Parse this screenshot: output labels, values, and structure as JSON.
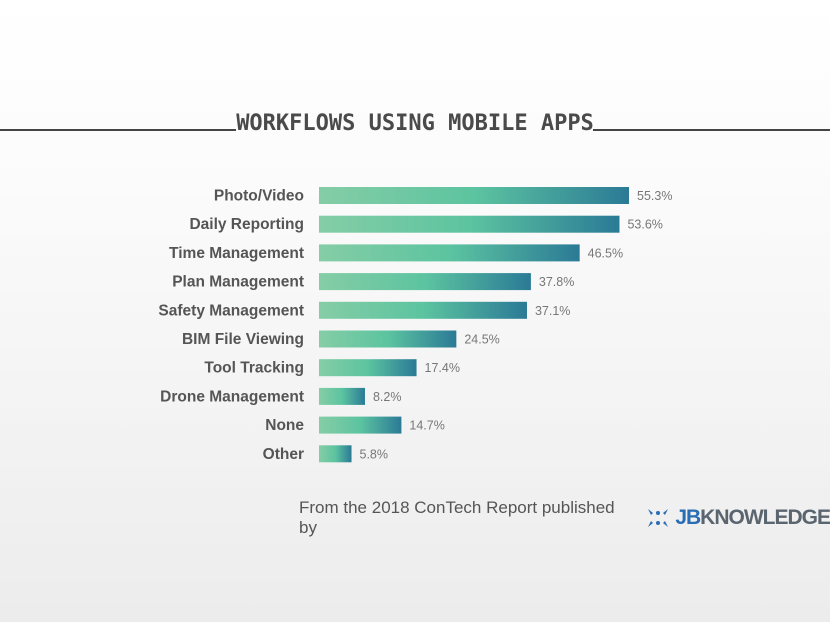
{
  "chart_data": {
    "type": "bar",
    "orientation": "horizontal",
    "title": "WORKFLOWS USING MOBILE APPS",
    "categories": [
      "Photo/Video",
      "Daily Reporting",
      "Time Management",
      "Plan Management",
      "Safety Management",
      "BIM File Viewing",
      "Tool Tracking",
      "Drone Management",
      "None",
      "Other"
    ],
    "values": [
      55.3,
      53.6,
      46.5,
      37.8,
      37.1,
      24.5,
      17.4,
      8.2,
      14.7,
      5.8
    ],
    "value_labels": [
      "55.3%",
      "53.6%",
      "46.5%",
      "37.8%",
      "37.1%",
      "24.5%",
      "17.4%",
      "8.2%",
      "14.7%",
      "5.8%"
    ],
    "unit": "%",
    "grid": false,
    "colors": {
      "bar_start": "#85cda6",
      "bar_mid": "#5cc4a0",
      "bar_end": "#2b7a96",
      "label": "#555555",
      "value": "#777777"
    }
  },
  "footer": {
    "text": "From the 2018 ConTech Report published by",
    "logo_jb": "JB",
    "logo_rest": "KNOWLEDGE"
  }
}
